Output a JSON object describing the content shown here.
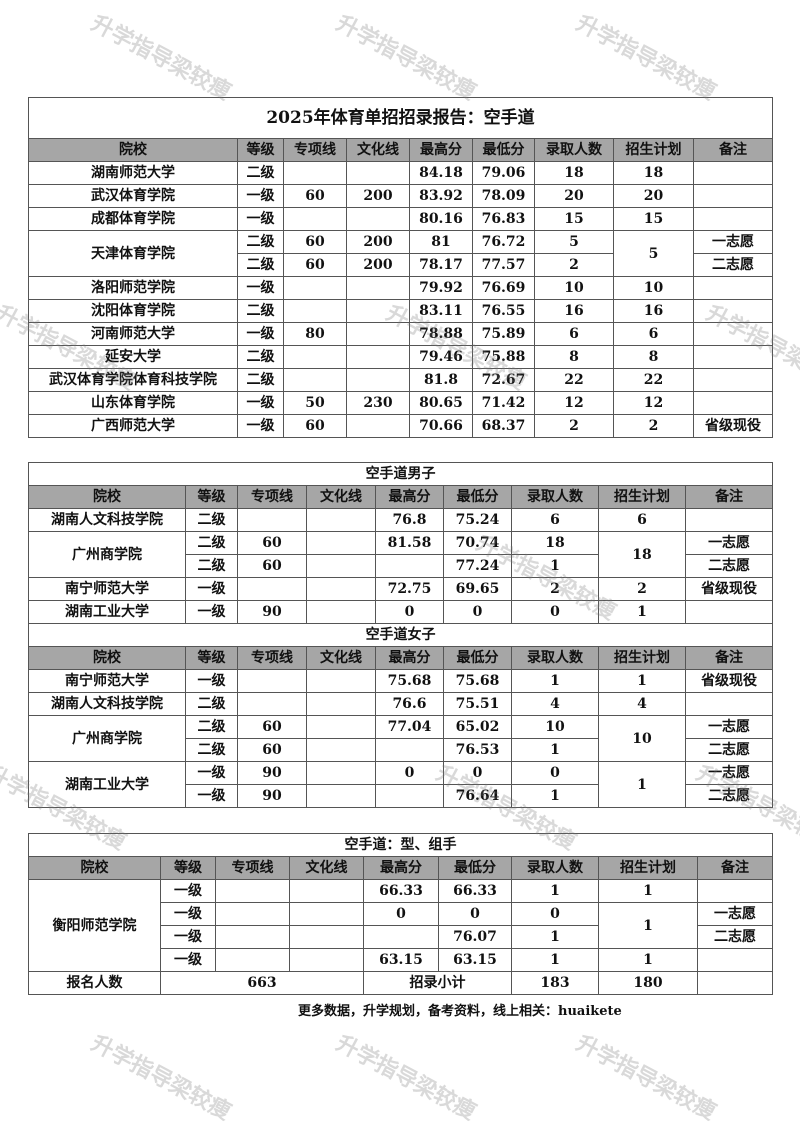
{
  "watermark": "升学指导梁较瘦",
  "columns": [
    "院校",
    "等级",
    "专项线",
    "文化线",
    "最高分",
    "最低分",
    "录取人数",
    "招生计划",
    "备注"
  ],
  "tables": [
    {
      "title": "2025年体育单招招录报告：空手道",
      "sections": [
        {
          "rows": [
            [
              {
                "t": "湖南师范大学"
              },
              {
                "t": "二级"
              },
              {
                "t": ""
              },
              {
                "t": ""
              },
              {
                "t": "84.18"
              },
              {
                "t": "79.06"
              },
              {
                "t": "18"
              },
              {
                "t": "18"
              },
              {
                "t": ""
              }
            ],
            [
              {
                "t": "武汉体育学院"
              },
              {
                "t": "一级"
              },
              {
                "t": "60"
              },
              {
                "t": "200"
              },
              {
                "t": "83.92"
              },
              {
                "t": "78.09"
              },
              {
                "t": "20"
              },
              {
                "t": "20"
              },
              {
                "t": ""
              }
            ],
            [
              {
                "t": "成都体育学院"
              },
              {
                "t": "一级"
              },
              {
                "t": ""
              },
              {
                "t": ""
              },
              {
                "t": "80.16"
              },
              {
                "t": "76.83"
              },
              {
                "t": "15"
              },
              {
                "t": "15"
              },
              {
                "t": ""
              }
            ],
            [
              {
                "t": "天津体育学院",
                "rs": 2
              },
              {
                "t": "二级"
              },
              {
                "t": "60"
              },
              {
                "t": "200"
              },
              {
                "t": "81"
              },
              {
                "t": "76.72"
              },
              {
                "t": "5"
              },
              {
                "t": "5",
                "rs": 2
              },
              {
                "t": "一志愿"
              }
            ],
            [
              null,
              {
                "t": "二级"
              },
              {
                "t": "60"
              },
              {
                "t": "200"
              },
              {
                "t": "78.17"
              },
              {
                "t": "77.57"
              },
              {
                "t": "2"
              },
              null,
              {
                "t": "二志愿"
              }
            ],
            [
              {
                "t": "洛阳师范学院"
              },
              {
                "t": "一级"
              },
              {
                "t": ""
              },
              {
                "t": ""
              },
              {
                "t": "79.92"
              },
              {
                "t": "76.69"
              },
              {
                "t": "10"
              },
              {
                "t": "10"
              },
              {
                "t": ""
              }
            ],
            [
              {
                "t": "沈阳体育学院"
              },
              {
                "t": "二级"
              },
              {
                "t": ""
              },
              {
                "t": ""
              },
              {
                "t": "83.11"
              },
              {
                "t": "76.55"
              },
              {
                "t": "16"
              },
              {
                "t": "16"
              },
              {
                "t": ""
              }
            ],
            [
              {
                "t": "河南师范大学"
              },
              {
                "t": "一级"
              },
              {
                "t": "80"
              },
              {
                "t": ""
              },
              {
                "t": "78.88"
              },
              {
                "t": "75.89"
              },
              {
                "t": "6"
              },
              {
                "t": "6"
              },
              {
                "t": ""
              }
            ],
            [
              {
                "t": "延安大学"
              },
              {
                "t": "二级"
              },
              {
                "t": ""
              },
              {
                "t": ""
              },
              {
                "t": "79.46"
              },
              {
                "t": "75.88"
              },
              {
                "t": "8"
              },
              {
                "t": "8"
              },
              {
                "t": ""
              }
            ],
            [
              {
                "t": "武汉体育学院体育科技学院"
              },
              {
                "t": "二级"
              },
              {
                "t": ""
              },
              {
                "t": ""
              },
              {
                "t": "81.8"
              },
              {
                "t": "72.67"
              },
              {
                "t": "22"
              },
              {
                "t": "22"
              },
              {
                "t": ""
              }
            ],
            [
              {
                "t": "山东体育学院"
              },
              {
                "t": "一级"
              },
              {
                "t": "50"
              },
              {
                "t": "230"
              },
              {
                "t": "80.65"
              },
              {
                "t": "71.42"
              },
              {
                "t": "12"
              },
              {
                "t": "12"
              },
              {
                "t": ""
              }
            ],
            [
              {
                "t": "广西师范大学"
              },
              {
                "t": "一级"
              },
              {
                "t": "60"
              },
              {
                "t": ""
              },
              {
                "t": "70.66"
              },
              {
                "t": "68.37"
              },
              {
                "t": "2"
              },
              {
                "t": "2"
              },
              {
                "t": "省级现役"
              }
            ]
          ]
        }
      ]
    },
    {
      "title": "空手道男子",
      "sections": [
        {
          "rows": [
            [
              {
                "t": "湖南人文科技学院"
              },
              {
                "t": "二级"
              },
              {
                "t": ""
              },
              {
                "t": ""
              },
              {
                "t": "76.8"
              },
              {
                "t": "75.24"
              },
              {
                "t": "6"
              },
              {
                "t": "6"
              },
              {
                "t": ""
              }
            ],
            [
              {
                "t": "广州商学院",
                "rs": 2
              },
              {
                "t": "二级"
              },
              {
                "t": "60"
              },
              {
                "t": ""
              },
              {
                "t": "81.58"
              },
              {
                "t": "70.74"
              },
              {
                "t": "18"
              },
              {
                "t": "18",
                "rs": 2
              },
              {
                "t": "一志愿"
              }
            ],
            [
              null,
              {
                "t": "二级"
              },
              {
                "t": "60"
              },
              {
                "t": ""
              },
              {
                "t": ""
              },
              {
                "t": "77.24"
              },
              {
                "t": "1"
              },
              null,
              {
                "t": "二志愿"
              }
            ],
            [
              {
                "t": "南宁师范大学"
              },
              {
                "t": "一级"
              },
              {
                "t": ""
              },
              {
                "t": ""
              },
              {
                "t": "72.75"
              },
              {
                "t": "69.65"
              },
              {
                "t": "2"
              },
              {
                "t": "2"
              },
              {
                "t": "省级现役"
              }
            ],
            [
              {
                "t": "湖南工业大学"
              },
              {
                "t": "一级"
              },
              {
                "t": "90"
              },
              {
                "t": ""
              },
              {
                "t": "0"
              },
              {
                "t": "0"
              },
              {
                "t": "0"
              },
              {
                "t": "1"
              },
              {
                "t": ""
              }
            ]
          ]
        },
        {
          "subtitle": "空手道女子",
          "rows": [
            [
              {
                "t": "南宁师范大学"
              },
              {
                "t": "一级"
              },
              {
                "t": ""
              },
              {
                "t": ""
              },
              {
                "t": "75.68"
              },
              {
                "t": "75.68"
              },
              {
                "t": "1"
              },
              {
                "t": "1"
              },
              {
                "t": "省级现役"
              }
            ],
            [
              {
                "t": "湖南人文科技学院"
              },
              {
                "t": "二级"
              },
              {
                "t": ""
              },
              {
                "t": ""
              },
              {
                "t": "76.6"
              },
              {
                "t": "75.51"
              },
              {
                "t": "4"
              },
              {
                "t": "4"
              },
              {
                "t": ""
              }
            ],
            [
              {
                "t": "广州商学院",
                "rs": 2
              },
              {
                "t": "二级"
              },
              {
                "t": "60"
              },
              {
                "t": ""
              },
              {
                "t": "77.04"
              },
              {
                "t": "65.02"
              },
              {
                "t": "10"
              },
              {
                "t": "10",
                "rs": 2
              },
              {
                "t": "一志愿"
              }
            ],
            [
              null,
              {
                "t": "二级"
              },
              {
                "t": "60"
              },
              {
                "t": ""
              },
              {
                "t": ""
              },
              {
                "t": "76.53"
              },
              {
                "t": "1"
              },
              null,
              {
                "t": "二志愿"
              }
            ],
            [
              {
                "t": "湖南工业大学",
                "rs": 2
              },
              {
                "t": "一级"
              },
              {
                "t": "90"
              },
              {
                "t": ""
              },
              {
                "t": "0"
              },
              {
                "t": "0"
              },
              {
                "t": "0"
              },
              {
                "t": "1",
                "rs": 2
              },
              {
                "t": "一志愿"
              }
            ],
            [
              null,
              {
                "t": "一级"
              },
              {
                "t": "90"
              },
              {
                "t": ""
              },
              {
                "t": ""
              },
              {
                "t": "76.64"
              },
              {
                "t": "1"
              },
              null,
              {
                "t": "二志愿"
              }
            ]
          ]
        }
      ]
    },
    {
      "title": "空手道：型、组手",
      "sections": [
        {
          "rows": [
            [
              {
                "t": "衡阳师范学院",
                "rs": 4
              },
              {
                "t": "一级"
              },
              {
                "t": ""
              },
              {
                "t": ""
              },
              {
                "t": "66.33"
              },
              {
                "t": "66.33"
              },
              {
                "t": "1"
              },
              {
                "t": "1"
              },
              {
                "t": ""
              }
            ],
            [
              null,
              {
                "t": "一级"
              },
              {
                "t": ""
              },
              {
                "t": ""
              },
              {
                "t": "0"
              },
              {
                "t": "0"
              },
              {
                "t": "0"
              },
              {
                "t": "1",
                "rs": 2
              },
              {
                "t": "一志愿"
              }
            ],
            [
              null,
              {
                "t": "一级"
              },
              {
                "t": ""
              },
              {
                "t": ""
              },
              {
                "t": ""
              },
              {
                "t": "76.07"
              },
              {
                "t": "1"
              },
              null,
              {
                "t": "二志愿"
              }
            ],
            [
              null,
              {
                "t": "一级"
              },
              {
                "t": ""
              },
              {
                "t": ""
              },
              {
                "t": "63.15"
              },
              {
                "t": "63.15"
              },
              {
                "t": "1"
              },
              {
                "t": "1"
              },
              {
                "t": ""
              }
            ]
          ]
        }
      ],
      "footer": [
        {
          "t": "报名人数"
        },
        {
          "t": "663",
          "cs": 3
        },
        {
          "t": "招录小计",
          "cs": 2
        },
        {
          "t": "183"
        },
        {
          "t": "180"
        },
        {
          "t": ""
        }
      ]
    }
  ],
  "note": "更多数据，升学规划，备考资料，线上相关：huaikete"
}
